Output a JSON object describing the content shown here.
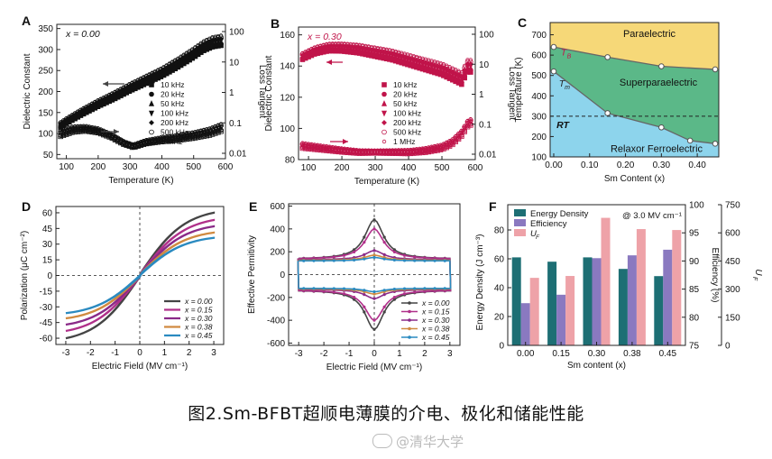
{
  "caption": "图2.Sm-BFBT超顺电薄膜的介电、极化和储能性能",
  "watermark": "@清华大学",
  "chart_data": [
    {
      "panel": "A",
      "type": "scatter",
      "annotation": "x = 0.00",
      "xlabel": "Temperature (K)",
      "ylabel": "Dielectric Constant",
      "y2label": "Loss Tangent",
      "xlim": [
        70,
        600
      ],
      "xticks": [
        100,
        200,
        300,
        400,
        500,
        600
      ],
      "ylim": [
        40,
        360
      ],
      "yticks": [
        50,
        100,
        150,
        200,
        250,
        300,
        350
      ],
      "y2ticks_log": [
        0.01,
        0.1,
        1,
        10,
        100
      ],
      "legend": [
        "10 kHz",
        "20 kHz",
        "50 kHz",
        "100 kHz",
        "200 kHz",
        "500 kHz",
        "1 MHz"
      ],
      "permittivity_curve": [
        [
          80,
          120
        ],
        [
          100,
          130
        ],
        [
          150,
          152
        ],
        [
          200,
          172
        ],
        [
          250,
          190
        ],
        [
          300,
          210
        ],
        [
          350,
          228
        ],
        [
          400,
          246
        ],
        [
          450,
          268
        ],
        [
          500,
          292
        ],
        [
          530,
          308
        ],
        [
          560,
          318
        ],
        [
          590,
          322
        ]
      ],
      "permittivity_spread": 12,
      "loss_curve": [
        [
          80,
          100
        ],
        [
          120,
          110
        ],
        [
          160,
          112
        ],
        [
          200,
          107
        ],
        [
          240,
          95
        ],
        [
          280,
          78
        ],
        [
          310,
          70
        ],
        [
          350,
          80
        ],
        [
          400,
          86
        ],
        [
          450,
          90
        ],
        [
          500,
          96
        ],
        [
          550,
          104
        ],
        [
          590,
          115
        ]
      ],
      "loss_spread": 9
    },
    {
      "panel": "B",
      "type": "scatter",
      "annotation": "x = 0.30",
      "xlabel": "Temperature (K)",
      "ylabel": "Dielectric Constant",
      "y2label": "Loss Tangent",
      "xlim": [
        70,
        600
      ],
      "xticks": [
        100,
        200,
        300,
        400,
        500,
        600
      ],
      "ylim": [
        80,
        165
      ],
      "yticks": [
        80,
        100,
        120,
        140,
        160
      ],
      "y2ticks_log": [
        0.01,
        0.1,
        1,
        10,
        100
      ],
      "legend": [
        "10 kHz",
        "20 kHz",
        "50 kHz",
        "100 kHz",
        "200 kHz",
        "500 kHz",
        "1 MHz"
      ],
      "permittivity_curve": [
        [
          80,
          146
        ],
        [
          120,
          150
        ],
        [
          160,
          152
        ],
        [
          200,
          152
        ],
        [
          250,
          151
        ],
        [
          300,
          149
        ],
        [
          350,
          147
        ],
        [
          400,
          144
        ],
        [
          450,
          141
        ],
        [
          500,
          138
        ],
        [
          530,
          135
        ],
        [
          560,
          132
        ],
        [
          575,
          140
        ]
      ],
      "permittivity_spread": 4,
      "loss_curve": [
        [
          80,
          89
        ],
        [
          120,
          88
        ],
        [
          160,
          87
        ],
        [
          200,
          86
        ],
        [
          250,
          85
        ],
        [
          300,
          85
        ],
        [
          350,
          85
        ],
        [
          400,
          85
        ],
        [
          450,
          86
        ],
        [
          500,
          88
        ],
        [
          530,
          91
        ],
        [
          560,
          97
        ],
        [
          580,
          104
        ]
      ],
      "loss_spread": 2
    },
    {
      "panel": "C",
      "type": "line",
      "xlabel": "Sm Content (x)",
      "ylabel": "Temperature (K)",
      "xlim": [
        -0.01,
        0.46
      ],
      "xticks": [
        0.0,
        0.1,
        0.2,
        0.3,
        0.4
      ],
      "ylim": [
        100,
        760
      ],
      "yticks": [
        100,
        200,
        300,
        400,
        500,
        600,
        700
      ],
      "Tb": {
        "label": "T_B",
        "x": [
          0.0,
          0.15,
          0.3,
          0.45
        ],
        "y": [
          640,
          590,
          545,
          530
        ]
      },
      "Tm": {
        "label": "T_m",
        "x": [
          0.0,
          0.15,
          0.3,
          0.38,
          0.45
        ],
        "y": [
          520,
          315,
          245,
          180,
          165
        ]
      },
      "RT": {
        "label": "RT",
        "y": 300
      },
      "regions": [
        "Paraelectric",
        "Superparaelectric",
        "Relaxor Ferroelectric"
      ],
      "colors": {
        "paraelectric": "#f6d878",
        "superparaelectric": "#5bb888",
        "relaxor": "#8dd4ec"
      }
    },
    {
      "panel": "D",
      "type": "line",
      "xlabel": "Electric Field (MV cm⁻¹)",
      "ylabel": "Polarization (μC cm⁻²)",
      "xlim": [
        -3.4,
        3.4
      ],
      "xticks": [
        -3,
        -2,
        -1,
        0,
        1,
        2,
        3
      ],
      "ylim": [
        -66,
        66
      ],
      "yticks": [
        -60,
        -45,
        -30,
        -15,
        0,
        15,
        30,
        45,
        60
      ],
      "series": [
        {
          "name": "x = 0.00",
          "color": "#444444",
          "Pmax": 60
        },
        {
          "name": "x = 0.15",
          "color": "#b0308a",
          "Pmax": 53
        },
        {
          "name": "x = 0.30",
          "color": "#8a2a88",
          "Pmax": 47
        },
        {
          "name": "x = 0.38",
          "color": "#d08a40",
          "Pmax": 41
        },
        {
          "name": "x = 0.45",
          "color": "#2a8ac0",
          "Pmax": 36
        }
      ]
    },
    {
      "panel": "E",
      "type": "line",
      "xlabel": "Electric Field (MV cm⁻¹)",
      "ylabel": "Effective Permitivity",
      "xlim": [
        -3.4,
        3.4
      ],
      "xticks": [
        -3,
        -2,
        -1,
        0,
        1,
        2,
        3
      ],
      "ylim": [
        -620,
        620
      ],
      "yticks": [
        -600,
        -400,
        -200,
        0,
        200,
        400,
        600
      ],
      "series": [
        {
          "name": "x = 0.00",
          "color": "#444444",
          "peak": 480,
          "base": 135
        },
        {
          "name": "x = 0.15",
          "color": "#b0308a",
          "peak": 400,
          "base": 135
        },
        {
          "name": "x = 0.30",
          "color": "#8a2a88",
          "peak": 210,
          "base": 130
        },
        {
          "name": "x = 0.38",
          "color": "#d08a40",
          "peak": 170,
          "base": 125
        },
        {
          "name": "x = 0.45",
          "color": "#2a8ac0",
          "peak": 150,
          "base": 120
        }
      ]
    },
    {
      "panel": "F",
      "type": "bar",
      "annotation": "@ 3.0 MV cm⁻¹",
      "xlabel": "Sm content (x)",
      "ylabel": "Energy Density (J cm⁻³)",
      "y2label": "Efficiency (%)",
      "y3label": "U_F",
      "categories": [
        "0.00",
        "0.15",
        "0.30",
        "0.38",
        "0.45"
      ],
      "ylim": [
        0,
        90
      ],
      "yticks": [
        0,
        20,
        40,
        60,
        80
      ],
      "y2lim": [
        75,
        100
      ],
      "y2ticks": [
        75,
        80,
        85,
        90,
        95,
        100
      ],
      "y3lim": [
        0,
        750
      ],
      "y3ticks": [
        0,
        150,
        300,
        450,
        600,
        750
      ],
      "series": [
        {
          "name": "Energy Density",
          "color": "#1d6f74",
          "axis": "left",
          "values": [
            61,
            58,
            61,
            53,
            48
          ]
        },
        {
          "name": "Efficiency",
          "color": "#8a79c0",
          "axis": "right",
          "values": [
            82.5,
            84,
            90.5,
            91,
            92
          ]
        },
        {
          "name": "U_F",
          "color": "#eea2a8",
          "axis": "far-right",
          "values": [
            360,
            370,
            680,
            620,
            615
          ]
        }
      ]
    }
  ]
}
